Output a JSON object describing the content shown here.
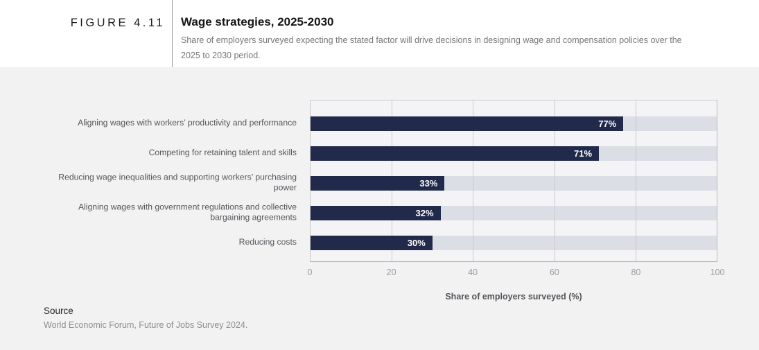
{
  "figure": {
    "label": "FIGURE 4.11"
  },
  "header": {
    "title": "Wage strategies, 2025-2030",
    "subtitle": "Share of employers surveyed expecting the stated factor will drive decisions in designing wage and compensation policies over the 2025 to 2030 period."
  },
  "chart_data": {
    "type": "bar",
    "orientation": "horizontal",
    "title": "Wage strategies, 2025-2030",
    "categories": [
      "Aligning wages with workers’ productivity and performance",
      "Competing for retaining talent and skills",
      "Reducing wage inequalities and supporting workers’ purchasing power",
      "Aligning wages with government regulations and collective bargaining agreements",
      "Reducing costs"
    ],
    "values": [
      77,
      71,
      33,
      32,
      30
    ],
    "value_labels": [
      "77%",
      "71%",
      "33%",
      "32%",
      "30%"
    ],
    "xlabel": "Share of employers surveyed (%)",
    "ylabel": "",
    "xlim": [
      0,
      100
    ],
    "xticks": [
      0,
      20,
      40,
      60,
      80,
      100
    ],
    "grid": true,
    "legend": null,
    "colors": {
      "bar": "#212a4a",
      "track": "#dcdee6",
      "plot_background": "#f4f4f6",
      "page_background": "#f2f2f3",
      "gridline": "#c9cacd"
    }
  },
  "source": {
    "heading": "Source",
    "text": "World Economic Forum, Future of Jobs Survey 2024."
  }
}
